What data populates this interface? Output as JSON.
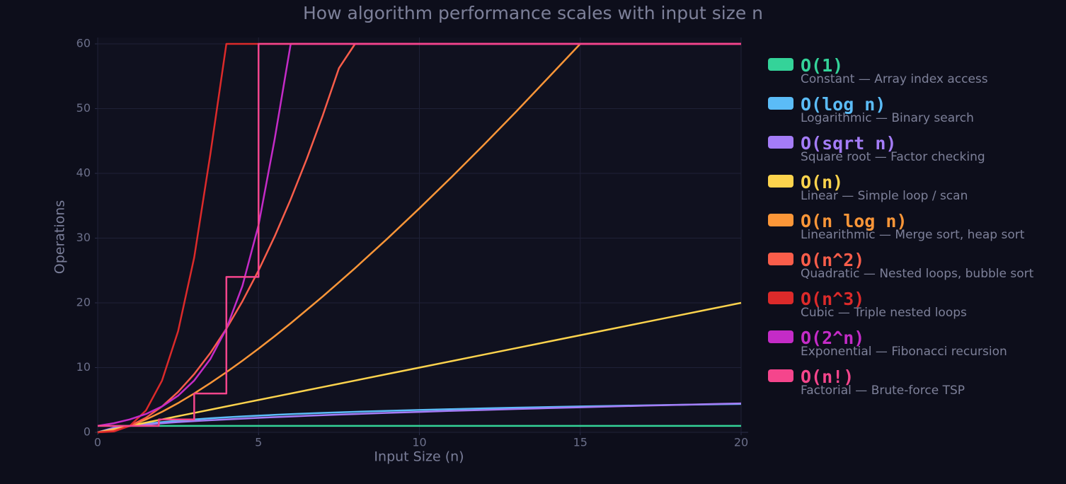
{
  "chart_data": {
    "type": "line",
    "subtitle": "How algorithm performance scales with input size n",
    "xlabel": "Input Size (n)",
    "ylabel": "Operations",
    "xlim": [
      0,
      20
    ],
    "ylim": [
      0,
      60
    ],
    "xticks": [
      0,
      5,
      10,
      15,
      20
    ],
    "yticks": [
      0,
      10,
      20,
      30,
      40,
      50,
      60
    ],
    "grid": true,
    "legend": "right",
    "x": [
      0,
      0.5,
      1,
      1.5,
      2,
      2.5,
      3,
      3.5,
      4,
      4.5,
      5,
      5.5,
      6,
      6.5,
      7,
      7.5,
      8,
      9,
      10,
      11,
      12,
      13,
      14,
      15,
      16,
      17,
      18,
      19,
      20
    ],
    "series": [
      {
        "name": "O(1)",
        "description": "Constant — Array index access",
        "color": "#34d399",
        "values": [
          1,
          1,
          1,
          1,
          1,
          1,
          1,
          1,
          1,
          1,
          1,
          1,
          1,
          1,
          1,
          1,
          1,
          1,
          1,
          1,
          1,
          1,
          1,
          1,
          1,
          1,
          1,
          1,
          1
        ]
      },
      {
        "name": "O(log n)",
        "description": "Logarithmic — Binary search",
        "color": "#5bbcf7",
        "values": [
          0,
          0.58,
          1,
          1.32,
          1.58,
          1.81,
          2,
          2.17,
          2.32,
          2.46,
          2.58,
          2.7,
          2.81,
          2.91,
          3,
          3.09,
          3.17,
          3.32,
          3.46,
          3.58,
          3.7,
          3.81,
          3.91,
          4,
          4.09,
          4.17,
          4.25,
          4.32,
          4.39
        ]
      },
      {
        "name": "O(sqrt n)",
        "description": "Square root — Factor checking",
        "color": "#a47cf7",
        "values": [
          0,
          0.71,
          1,
          1.22,
          1.41,
          1.58,
          1.73,
          1.87,
          2,
          2.12,
          2.24,
          2.35,
          2.45,
          2.55,
          2.65,
          2.74,
          2.83,
          3,
          3.16,
          3.32,
          3.46,
          3.61,
          3.74,
          3.87,
          4,
          4.12,
          4.24,
          4.36,
          4.47
        ]
      },
      {
        "name": "O(n)",
        "description": "Linear — Simple loop / scan",
        "color": "#fcd34d",
        "values": [
          0,
          0.5,
          1,
          1.5,
          2,
          2.5,
          3,
          3.5,
          4,
          4.5,
          5,
          5.5,
          6,
          6.5,
          7,
          7.5,
          8,
          9,
          10,
          11,
          12,
          13,
          14,
          15,
          16,
          17,
          18,
          19,
          20
        ]
      },
      {
        "name": "O(n log n)",
        "description": "Linearithmic — Merge sort, heap sort",
        "color": "#fb9638",
        "values": [
          0,
          0.29,
          1,
          1.98,
          3.17,
          4.52,
          6,
          7.6,
          9.29,
          11.07,
          12.92,
          14.85,
          16.84,
          18.92,
          21,
          23.18,
          25.36,
          29.9,
          34.6,
          39.43,
          44.4,
          49.5,
          54.74,
          60,
          60,
          60,
          60,
          60,
          60
        ]
      },
      {
        "name": "O(n^2)",
        "description": "Quadratic — Nested loops, bubble sort",
        "color": "#f95d4a",
        "values": [
          0,
          0.25,
          1,
          2.25,
          4,
          6.25,
          9,
          12.25,
          16,
          20.25,
          25,
          30.25,
          36,
          42.25,
          49,
          56.25,
          60,
          60,
          60,
          60,
          60,
          60,
          60,
          60,
          60,
          60,
          60,
          60,
          60
        ]
      },
      {
        "name": "O(n^3)",
        "description": "Cubic — Triple nested loops",
        "color": "#dc2a2a",
        "values": [
          0,
          0.13,
          1,
          3.38,
          8,
          15.63,
          27,
          42.88,
          60,
          60,
          60,
          60,
          60,
          60,
          60,
          60,
          60,
          60,
          60,
          60,
          60,
          60,
          60,
          60,
          60,
          60,
          60,
          60,
          60
        ]
      },
      {
        "name": "O(2^n)",
        "description": "Exponential — Fibonacci recursion",
        "color": "#c42bc7",
        "values": [
          1,
          1.41,
          2,
          2.83,
          4,
          5.66,
          8,
          11.31,
          16,
          22.63,
          32,
          45.25,
          60,
          60,
          60,
          60,
          60,
          60,
          60,
          60,
          60,
          60,
          60,
          60,
          60,
          60,
          60,
          60,
          60
        ]
      },
      {
        "name": "O(n!)",
        "description": "Factorial — Brute-force TSP",
        "color": "#f5458c",
        "x": [
          0,
          1.9,
          1.9,
          3,
          3,
          4,
          4,
          5,
          5,
          20
        ],
        "values": [
          1,
          1,
          2,
          2,
          6,
          6,
          24,
          24,
          60,
          60
        ]
      }
    ]
  }
}
